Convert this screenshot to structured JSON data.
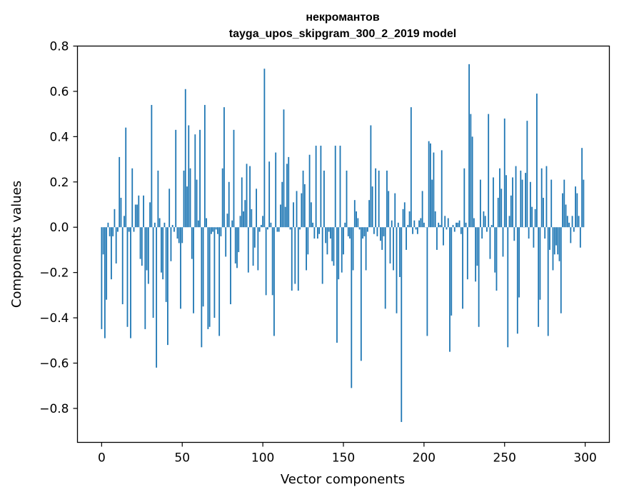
{
  "chart_data": {
    "type": "bar",
    "title": "некромантов",
    "subtitle": "tayga_upos_skipgram_300_2_2019 model",
    "xlabel": "Vector components",
    "ylabel": "Components values",
    "xlim": [
      -15,
      315
    ],
    "ylim": [
      -0.95,
      0.8
    ],
    "xticks": [
      0,
      50,
      100,
      150,
      200,
      250,
      300
    ],
    "yticks": [
      0.8,
      0.6,
      0.4,
      0.2,
      0.0,
      -0.2,
      -0.4,
      -0.6,
      -0.8
    ],
    "ytick_labels": [
      "0.8",
      "0.6",
      "0.4",
      "0.2",
      "0.0",
      "−0.2",
      "−0.4",
      "−0.6",
      "−0.8"
    ],
    "bar_color": "#1f77b4",
    "values": [
      -0.45,
      -0.12,
      -0.49,
      -0.32,
      0.02,
      -0.04,
      -0.23,
      -0.04,
      0.08,
      -0.16,
      -0.02,
      0.31,
      0.13,
      -0.34,
      0.05,
      0.44,
      -0.44,
      -0.02,
      -0.49,
      0.26,
      -0.02,
      0.1,
      0.1,
      0.14,
      -0.14,
      -0.17,
      0.14,
      -0.45,
      -0.19,
      -0.25,
      0.11,
      0.54,
      -0.4,
      0.02,
      -0.62,
      0.25,
      0.04,
      -0.2,
      -0.23,
      0.02,
      -0.33,
      -0.52,
      0.17,
      -0.15,
      0.01,
      -0.02,
      0.43,
      -0.05,
      -0.07,
      -0.36,
      -0.07,
      0.25,
      0.61,
      0.18,
      0.45,
      0.26,
      -0.14,
      -0.38,
      0.41,
      0.21,
      0.03,
      0.43,
      -0.53,
      -0.35,
      0.54,
      0.04,
      -0.45,
      -0.44,
      -0.03,
      -0.02,
      -0.4,
      -0.01,
      -0.03,
      -0.48,
      -0.04,
      0.26,
      0.53,
      -0.13,
      0.06,
      0.2,
      -0.34,
      0.03,
      0.43,
      -0.16,
      -0.18,
      -0.11,
      0.05,
      0.22,
      0.07,
      0.12,
      0.28,
      -0.2,
      0.27,
      0.08,
      -0.17,
      -0.09,
      0.17,
      -0.19,
      -0.02,
      0.01,
      0.05,
      0.7,
      -0.3,
      -0.01,
      0.29,
      0.02,
      -0.3,
      -0.48,
      0.33,
      -0.02,
      -0.02,
      0.1,
      0.2,
      0.52,
      0.09,
      0.28,
      0.31,
      -0.01,
      -0.28,
      0.11,
      -0.25,
      0.16,
      -0.28,
      -0.01,
      0.15,
      0.25,
      0.19,
      -0.19,
      -0.12,
      0.32,
      0.11,
      0.02,
      -0.05,
      0.36,
      -0.05,
      -0.03,
      0.36,
      -0.25,
      0.25,
      -0.07,
      -0.12,
      -0.02,
      -0.05,
      -0.15,
      -0.17,
      0.36,
      -0.51,
      -0.23,
      0.36,
      -0.2,
      -0.12,
      0.02,
      0.25,
      -0.04,
      -0.05,
      -0.71,
      -0.19,
      0.12,
      0.07,
      0.04,
      -0.01,
      -0.59,
      -0.05,
      -0.04,
      -0.19,
      -0.02,
      0.12,
      0.45,
      0.18,
      -0.03,
      0.26,
      -0.04,
      0.25,
      -0.06,
      -0.1,
      -0.04,
      -0.36,
      0.25,
      0.16,
      -0.16,
      0.03,
      -0.19,
      0.15,
      -0.38,
      0.02,
      -0.22,
      -0.86,
      0.08,
      0.11,
      -0.1,
      0.01,
      0.07,
      0.53,
      -0.03,
      0.03,
      -0.01,
      -0.03,
      0.03,
      0.04,
      0.16,
      0.02,
      0.0,
      -0.48,
      0.38,
      0.37,
      0.21,
      0.33,
      0.07,
      -0.1,
      0.02,
      0.01,
      0.34,
      -0.08,
      0.05,
      -0.01,
      0.04,
      -0.55,
      -0.39,
      0.01,
      -0.02,
      0.02,
      0.02,
      0.03,
      -0.03,
      -0.36,
      0.26,
      0.02,
      -0.23,
      0.72,
      0.5,
      0.4,
      0.04,
      -0.24,
      -0.17,
      -0.44,
      0.21,
      -0.05,
      0.07,
      0.05,
      -0.02,
      0.5,
      -0.14,
      0.01,
      0.22,
      -0.2,
      -0.28,
      0.13,
      0.26,
      0.17,
      -0.13,
      0.48,
      0.23,
      -0.53,
      0.05,
      0.14,
      0.22,
      -0.06,
      0.27,
      -0.47,
      -0.31,
      0.25,
      0.21,
      0.0,
      0.24,
      0.47,
      -0.05,
      0.2,
      0.09,
      -0.09,
      0.08,
      0.59,
      -0.44,
      -0.32,
      0.26,
      0.13,
      -0.05,
      0.27,
      -0.48,
      -0.1,
      0.21,
      -0.19,
      -0.12,
      -0.08,
      -0.12,
      -0.15,
      -0.38,
      0.15,
      0.21,
      0.1,
      0.05,
      0.02,
      -0.07,
      0.05,
      -0.02,
      0.18,
      0.15,
      0.05,
      -0.09,
      0.35,
      0.21
    ]
  }
}
